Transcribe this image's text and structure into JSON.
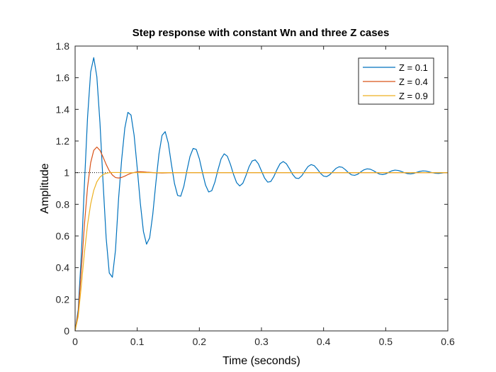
{
  "chart_data": {
    "type": "line",
    "title": "Step response with constant Wn and three Z cases",
    "xlabel": "Time (seconds)",
    "ylabel": "Amplitude",
    "xlim": [
      0,
      0.6
    ],
    "ylim": [
      0,
      1.8
    ],
    "xticks": [
      0,
      0.1,
      0.2,
      0.3,
      0.4,
      0.5,
      0.6
    ],
    "xtick_labels": [
      "0",
      "0.1",
      "0.2",
      "0.3",
      "0.4",
      "0.5",
      "0.6"
    ],
    "yticks": [
      0,
      0.2,
      0.4,
      0.6,
      0.8,
      1,
      1.2,
      1.4,
      1.6,
      1.8
    ],
    "ytick_labels": [
      "0",
      "0.2",
      "0.4",
      "0.6",
      "0.8",
      "1",
      "1.2",
      "1.4",
      "1.6",
      "1.8"
    ],
    "grid": false,
    "legend_position": "top-right",
    "reference_line": {
      "y": 1,
      "style": "dotted",
      "color": "#000000",
      "x_range": [
        0,
        0.06
      ]
    },
    "series": [
      {
        "name": "Z = 0.1",
        "color": "#0072BD",
        "x": [
          0,
          0.005,
          0.01,
          0.015,
          0.02,
          0.025,
          0.03,
          0.035,
          0.04,
          0.045,
          0.05,
          0.055,
          0.06,
          0.065,
          0.07,
          0.075,
          0.08,
          0.085,
          0.09,
          0.095,
          0.1,
          0.105,
          0.11,
          0.115,
          0.12,
          0.125,
          0.13,
          0.135,
          0.14,
          0.145,
          0.15,
          0.155,
          0.16,
          0.165,
          0.17,
          0.175,
          0.18,
          0.185,
          0.19,
          0.195,
          0.2,
          0.205,
          0.21,
          0.215,
          0.22,
          0.225,
          0.23,
          0.235,
          0.24,
          0.245,
          0.25,
          0.255,
          0.26,
          0.265,
          0.27,
          0.275,
          0.28,
          0.285,
          0.29,
          0.295,
          0.3,
          0.305,
          0.31,
          0.315,
          0.32,
          0.325,
          0.33,
          0.335,
          0.34,
          0.345,
          0.35,
          0.355,
          0.36,
          0.365,
          0.37,
          0.375,
          0.38,
          0.385,
          0.39,
          0.395,
          0.4,
          0.405,
          0.41,
          0.415,
          0.42,
          0.425,
          0.43,
          0.435,
          0.44,
          0.445,
          0.45,
          0.455,
          0.46,
          0.465,
          0.47,
          0.475,
          0.48,
          0.485,
          0.49,
          0.495,
          0.5,
          0.505,
          0.51,
          0.515,
          0.52,
          0.525,
          0.53,
          0.535,
          0.54,
          0.545,
          0.55,
          0.555,
          0.56,
          0.565,
          0.57,
          0.575,
          0.58,
          0.585,
          0.59,
          0.595,
          0.6
        ],
        "y": [
          0,
          0.134,
          0.48,
          0.926,
          1.347,
          1.636,
          1.727,
          1.606,
          1.315,
          0.939,
          0.587,
          0.366,
          0.339,
          0.51,
          0.837,
          1.085,
          1.281,
          1.381,
          1.364,
          1.236,
          1.029,
          0.807,
          0.628,
          0.548,
          0.588,
          0.735,
          0.936,
          1.118,
          1.236,
          1.259,
          1.187,
          1.054,
          0.931,
          0.856,
          0.851,
          0.913,
          1.013,
          1.103,
          1.153,
          1.147,
          1.088,
          1.001,
          0.921,
          0.878,
          0.886,
          0.94,
          1.018,
          1.087,
          1.119,
          1.104,
          1.053,
          0.989,
          0.937,
          0.916,
          0.933,
          0.981,
          1.037,
          1.074,
          1.081,
          1.056,
          1.011,
          0.966,
          0.94,
          0.944,
          0.976,
          1.02,
          1.057,
          1.07,
          1.057,
          1.025,
          0.99,
          0.966,
          0.963,
          0.981,
          1.011,
          1.039,
          1.051,
          1.044,
          1.022,
          0.996,
          0.978,
          0.975,
          0.987,
          1.007,
          1.027,
          1.037,
          1.034,
          1.019,
          1.0,
          0.986,
          0.983,
          0.99,
          1.005,
          1.018,
          1.024,
          1.022,
          1.013,
          1.001,
          0.991,
          0.988,
          0.992,
          1.002,
          1.012,
          1.016,
          1.014,
          1.008,
          1.0,
          0.994,
          0.992,
          0.995,
          1.002,
          1.008,
          1.011,
          1.01,
          1.005,
          1.0,
          0.996,
          0.995,
          0.997,
          1.0,
          1.0
        ]
      },
      {
        "name": "Z = 0.4",
        "color": "#D95319",
        "x": [
          0,
          0.005,
          0.01,
          0.015,
          0.02,
          0.025,
          0.03,
          0.035,
          0.04,
          0.045,
          0.05,
          0.055,
          0.06,
          0.065,
          0.07,
          0.075,
          0.08,
          0.085,
          0.09,
          0.095,
          0.1,
          0.105,
          0.11,
          0.115,
          0.12,
          0.13,
          0.14,
          0.15,
          0.16,
          0.18,
          0.2,
          0.25,
          0.3,
          0.4,
          0.5,
          0.6
        ],
        "y": [
          0,
          0.115,
          0.38,
          0.672,
          0.907,
          1.062,
          1.141,
          1.162,
          1.141,
          1.099,
          1.052,
          1.012,
          0.985,
          0.969,
          0.966,
          0.97,
          0.978,
          0.988,
          0.996,
          1.001,
          1.005,
          1.006,
          1.005,
          1.003,
          1.002,
          0.999,
          0.998,
          0.999,
          1.0,
          1.0,
          1.0,
          1.0,
          1.0,
          1.0,
          1.0,
          1.0
        ]
      },
      {
        "name": "Z = 0.9",
        "color": "#EDB120",
        "x": [
          0,
          0.005,
          0.01,
          0.015,
          0.02,
          0.025,
          0.03,
          0.035,
          0.04,
          0.045,
          0.05,
          0.055,
          0.06,
          0.065,
          0.07,
          0.075,
          0.08,
          0.09,
          0.1,
          0.12,
          0.15,
          0.2,
          0.3,
          0.4,
          0.5,
          0.6
        ],
        "y": [
          0,
          0.092,
          0.286,
          0.494,
          0.671,
          0.801,
          0.888,
          0.942,
          0.972,
          0.988,
          0.996,
          1.0,
          1.001,
          1.001,
          1.001,
          1.0,
          1.0,
          1.0,
          1.0,
          1.0,
          1.0,
          1.0,
          1.0,
          1.0,
          1.0,
          1.0
        ]
      }
    ]
  }
}
